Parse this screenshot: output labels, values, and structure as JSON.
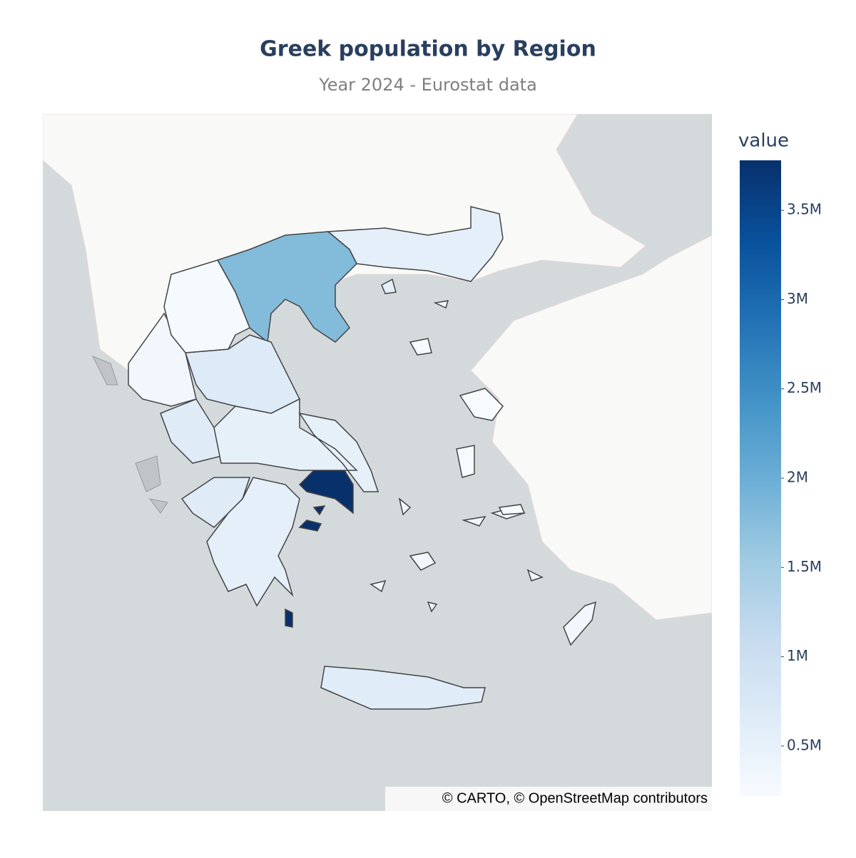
{
  "chart_data": {
    "type": "choropleth",
    "title": "Greek population by Region",
    "subtitle": "Year 2024 - Eurostat data",
    "values": [
      3780000,
      1790000,
      680000,
      640000,
      625000,
      565000,
      560000,
      530000,
      330000,
      320000,
      255000,
      220000
    ],
    "colorscale": [
      "#f7fbff",
      "#deebf7",
      "#c6dbef",
      "#9ecae1",
      "#6baed6",
      "#4292c6",
      "#2171b5",
      "#08519c",
      "#08306b"
    ],
    "colorbar": {
      "title": "value",
      "range": [
        220000,
        3780000
      ],
      "ticks": [
        {
          "value": 500000,
          "label": "0.5M"
        },
        {
          "value": 1000000,
          "label": "1M"
        },
        {
          "value": 1500000,
          "label": "1.5M"
        },
        {
          "value": 2000000,
          "label": "2M"
        },
        {
          "value": 2500000,
          "label": "2.5M"
        },
        {
          "value": 3000000,
          "label": "3M"
        },
        {
          "value": 3500000,
          "label": "3.5M"
        }
      ]
    },
    "attribution": "© CARTO, © OpenStreetMap contributors"
  }
}
